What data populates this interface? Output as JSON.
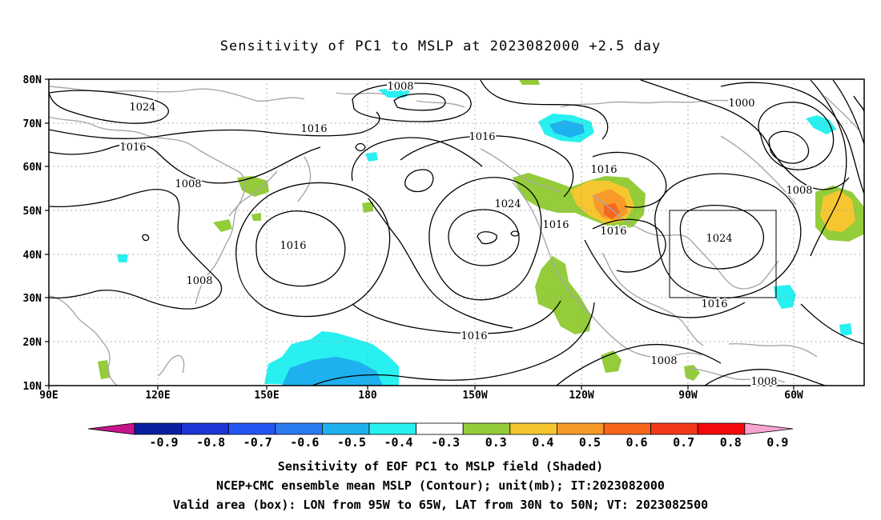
{
  "title": "Sensitivity of PC1 to MSLP at 2023082000 +2.5 day",
  "lat_labels": [
    "80N",
    "70N",
    "60N",
    "50N",
    "40N",
    "30N",
    "20N",
    "10N"
  ],
  "lon_labels": [
    "90E",
    "120E",
    "150E",
    "180",
    "150W",
    "120W",
    "90W",
    "60W"
  ],
  "contour_labels": [
    {
      "text": "1024"
    },
    {
      "text": "1016"
    },
    {
      "text": "1016"
    },
    {
      "text": "1008"
    },
    {
      "text": "1008"
    },
    {
      "text": "1016"
    },
    {
      "text": "1008"
    },
    {
      "text": "1016"
    },
    {
      "text": "1024"
    },
    {
      "text": "1016"
    },
    {
      "text": "1016"
    },
    {
      "text": "1016"
    },
    {
      "text": "1016"
    },
    {
      "text": "1000"
    },
    {
      "text": "1008"
    },
    {
      "text": "1024"
    },
    {
      "text": "1016"
    },
    {
      "text": "1008"
    },
    {
      "text": "1008"
    }
  ],
  "colorbar": {
    "labels": [
      "-0.9",
      "-0.8",
      "-0.7",
      "-0.6",
      "-0.5",
      "-0.4",
      "-0.3",
      "0.3",
      "0.4",
      "0.5",
      "0.6",
      "0.7",
      "0.8",
      "0.9"
    ],
    "colors": [
      "#0a1fa0",
      "#1c35d6",
      "#2456f2",
      "#2a7af0",
      "#1fb0f0",
      "#28f0f0",
      "#ffffff",
      "#94cc3a",
      "#f6c630",
      "#f89a2a",
      "#f8661e",
      "#f23a1a",
      "#f40a0a"
    ],
    "left_arrow_color": "#c8148c",
    "right_arrow_color": "#f8a4d0"
  },
  "valid_box": {
    "lon": [
      -95,
      -65
    ],
    "lat": [
      30,
      50
    ]
  },
  "captions": [
    "Sensitivity of EOF PC1 to MSLP field (Shaded)",
    "NCEP+CMC ensemble mean MSLP (Contour); unit(mb); IT:2023082000",
    "Valid area (box): LON from 95W to 65W, LAT from 30N to 50N; VT: 2023082500"
  ]
}
